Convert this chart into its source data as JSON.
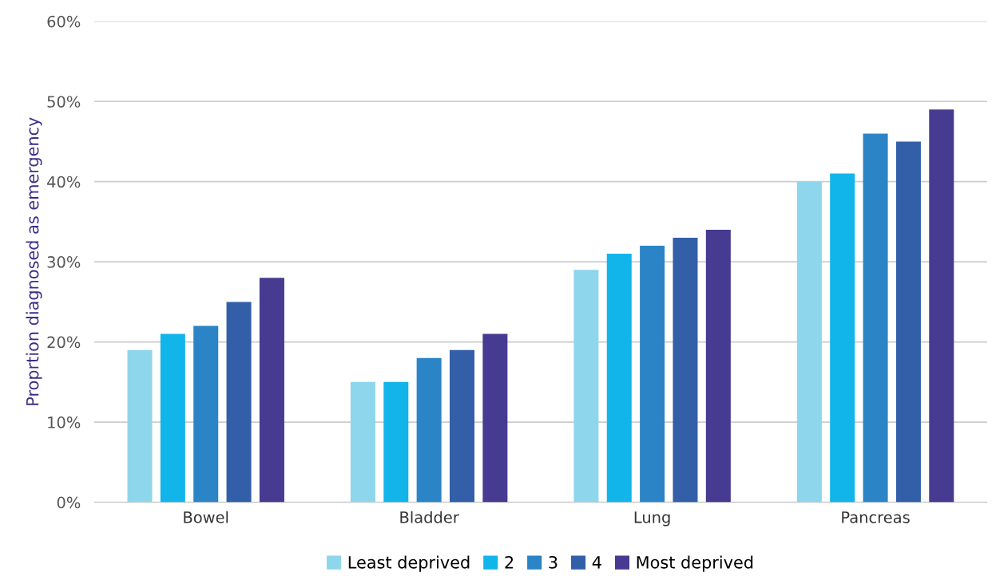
{
  "chart_data": {
    "type": "bar",
    "ylabel": "Proprtion diagnosed as emergency",
    "categories": [
      "Bowel",
      "Bladder",
      "Lung",
      "Pancreas"
    ],
    "series": [
      {
        "name": "Least deprived",
        "color": "#8dd6ec",
        "values": [
          19,
          15,
          29,
          40
        ]
      },
      {
        "name": "2",
        "color": "#12b5ea",
        "values": [
          21,
          15,
          31,
          41
        ]
      },
      {
        "name": "3",
        "color": "#2a84c6",
        "values": [
          22,
          18,
          32,
          46
        ]
      },
      {
        "name": "4",
        "color": "#335ea8",
        "values": [
          25,
          19,
          33,
          45
        ]
      },
      {
        "name": "Most deprived",
        "color": "#473a91",
        "values": [
          28,
          21,
          34,
          49
        ]
      }
    ],
    "ylim": [
      0,
      60
    ],
    "yticks": [
      {
        "value": 0,
        "label": "0%"
      },
      {
        "value": 10,
        "label": "10%"
      },
      {
        "value": 20,
        "label": "20%"
      },
      {
        "value": 30,
        "label": "30%"
      },
      {
        "value": 40,
        "label": "40%"
      },
      {
        "value": 50,
        "label": "50%"
      },
      {
        "value": 60,
        "label": "60%"
      }
    ],
    "grid": "y",
    "legend": "bottom"
  }
}
